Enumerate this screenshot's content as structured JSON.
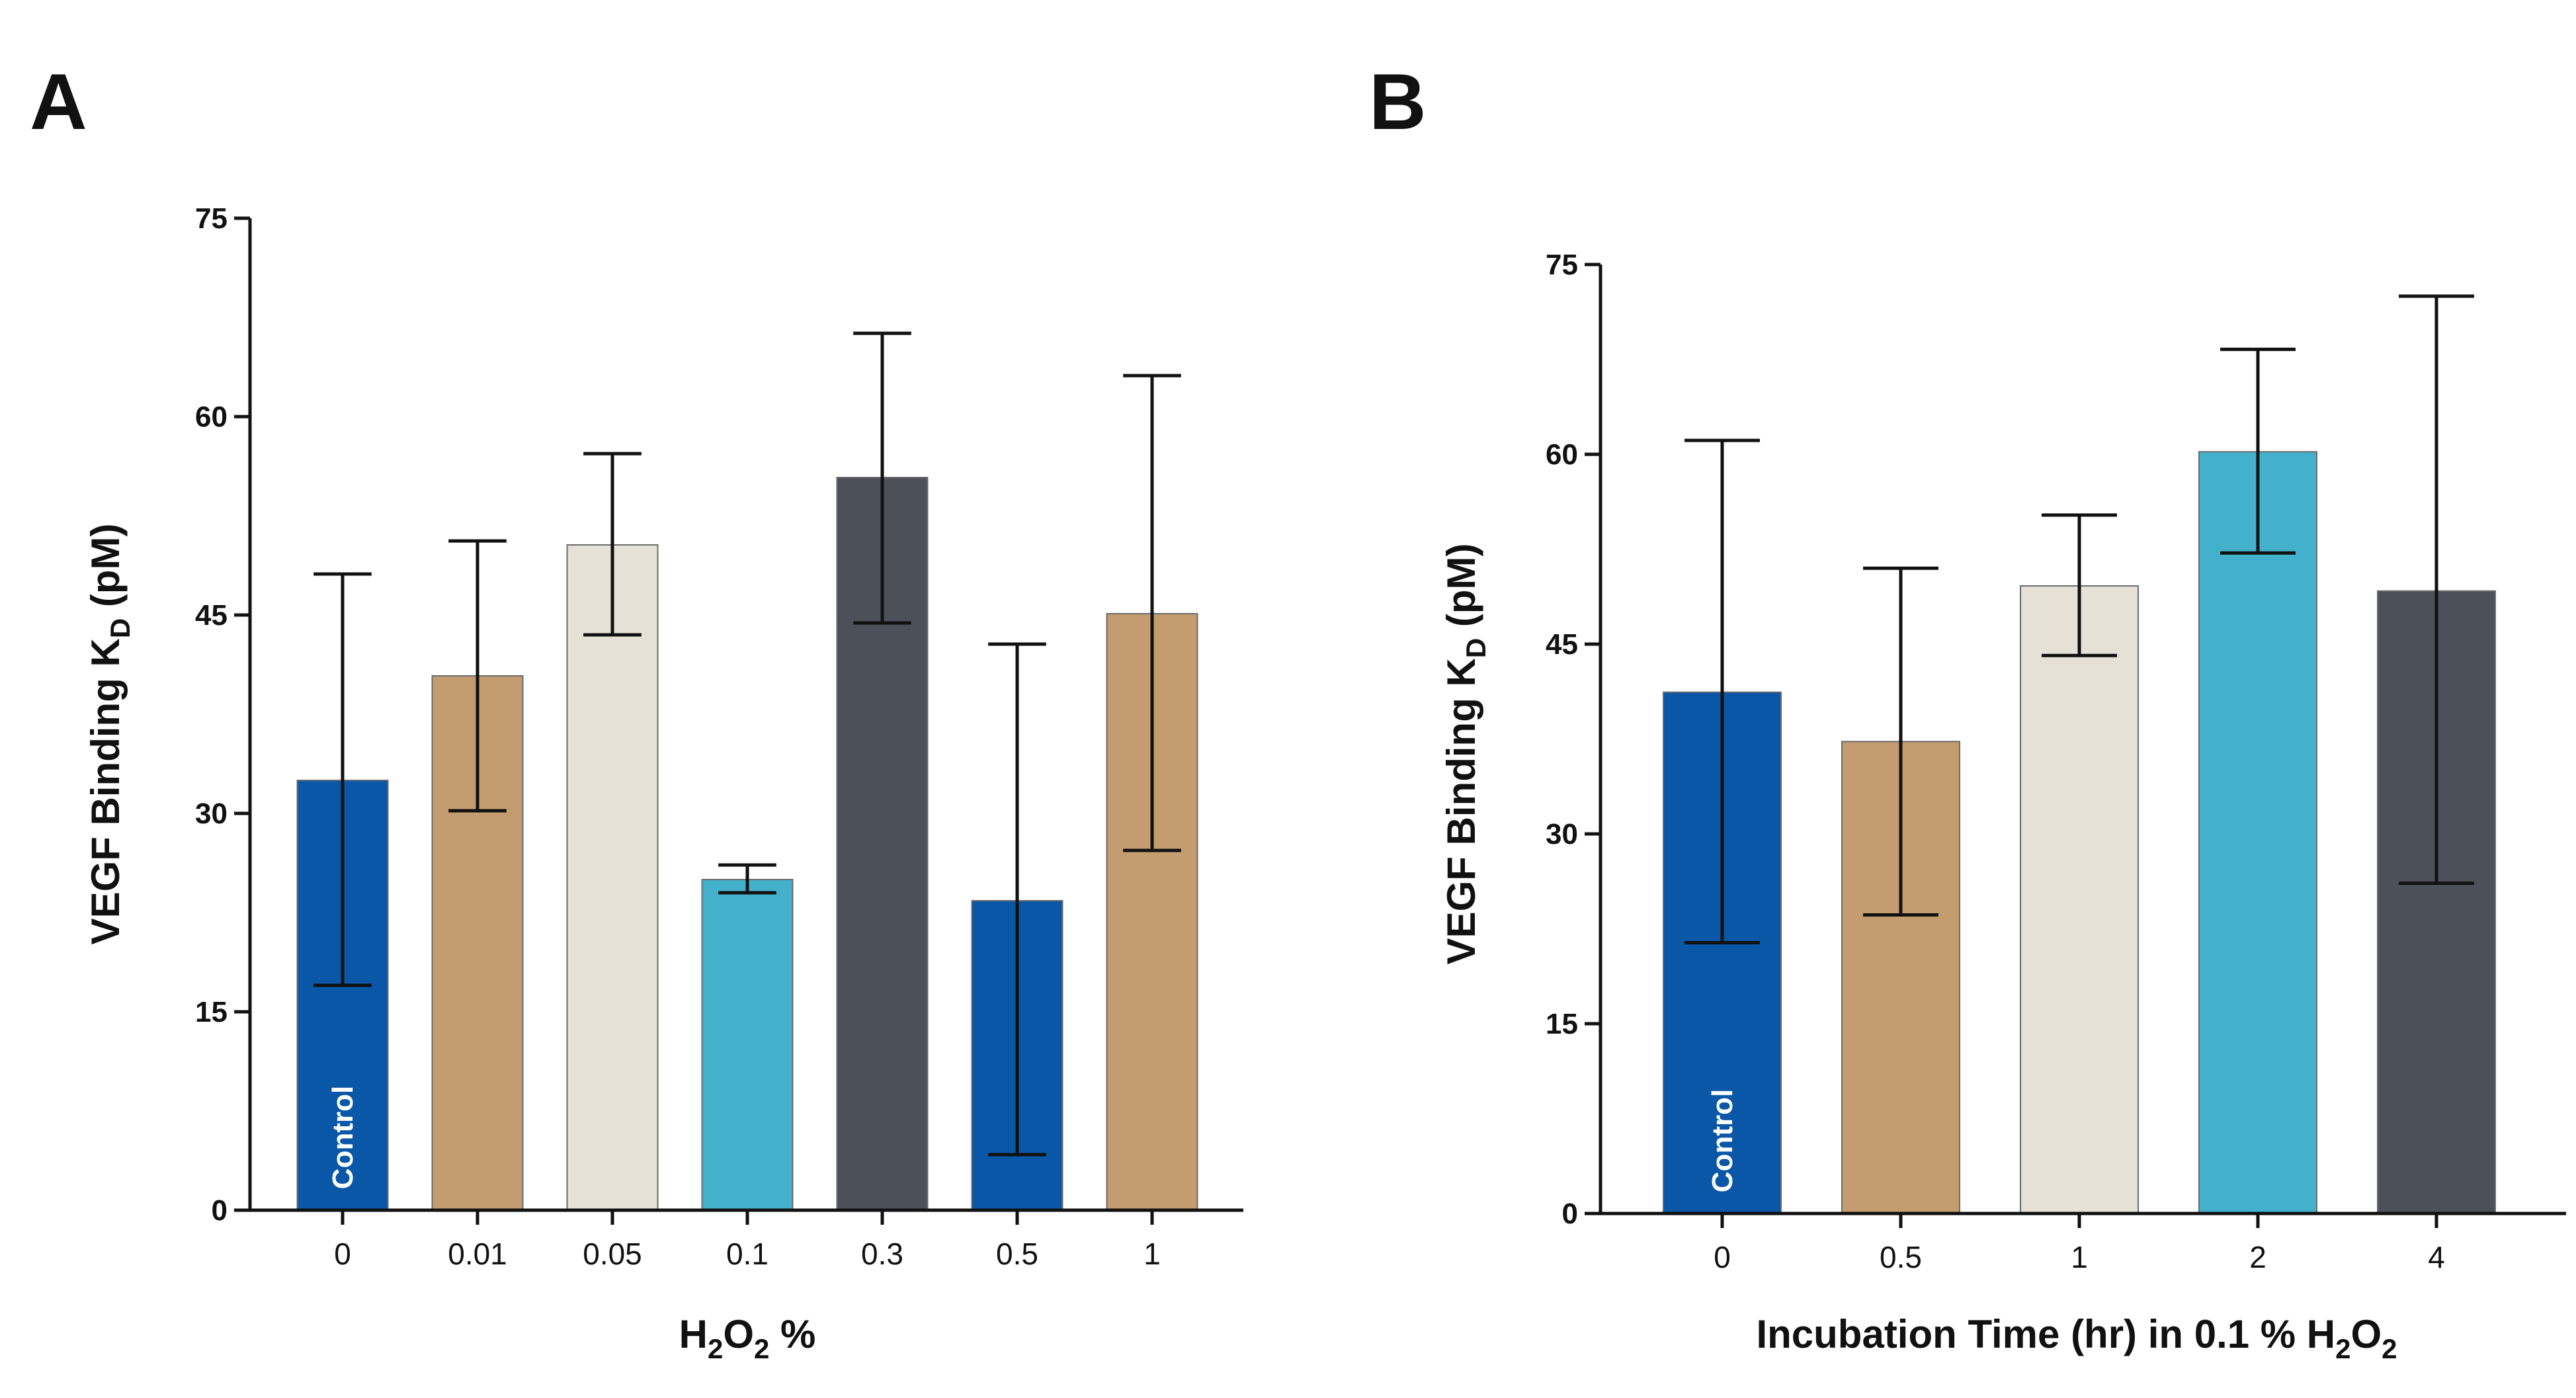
{
  "colors": {
    "blue": "#0a57a8",
    "tan": "#c39d6f",
    "beige": "#e6e1d6",
    "cyan": "#44b1cc",
    "gray": "#4c5159",
    "axis": "#111111",
    "bar_label_text": "#ffffff"
  },
  "chart_data": [
    {
      "panel": "A",
      "type": "bar",
      "xlabel": {
        "main": "H",
        "sub1": "2",
        "mid": "O",
        "sub2": "2",
        "tail": " %"
      },
      "ylabel": {
        "main": "VEGF Binding K",
        "sub": "D",
        "tail": " (pM)"
      },
      "ylim": [
        0,
        75
      ],
      "yticks": [
        0,
        15,
        30,
        45,
        60,
        75
      ],
      "categories": [
        "0",
        "0.01",
        "0.05",
        "0.1",
        "0.3",
        "0.5",
        "1"
      ],
      "values": [
        32.5,
        40.4,
        50.3,
        25.0,
        55.4,
        23.4,
        45.1
      ],
      "error_low": [
        17.0,
        30.2,
        43.5,
        24.0,
        44.4,
        4.2,
        27.2
      ],
      "error_high": [
        48.1,
        50.6,
        57.2,
        26.1,
        66.3,
        42.8,
        63.1
      ],
      "bar_colors": [
        "#0a57a8",
        "#c39d6f",
        "#e6e1d6",
        "#44b1cc",
        "#4c5159",
        "#0a57a8",
        "#c39d6f"
      ],
      "bar_annotations": [
        {
          "index": 0,
          "text": "Control"
        }
      ],
      "grid": false
    },
    {
      "panel": "B",
      "type": "bar",
      "xlabel": {
        "main": "Incubation Time (hr) in 0.1 % H",
        "sub1": "2",
        "mid": "O",
        "sub2": "2",
        "tail": ""
      },
      "ylabel": {
        "main": "VEGF Binding K",
        "sub": "D",
        "tail": " (pM)"
      },
      "ylim": [
        0,
        75
      ],
      "yticks": [
        0,
        15,
        30,
        45,
        60,
        75
      ],
      "categories": [
        "0",
        "0.5",
        "1",
        "2",
        "4"
      ],
      "values": [
        41.2,
        37.3,
        49.6,
        60.2,
        49.2
      ],
      "error_low": [
        21.4,
        23.6,
        44.1,
        52.2,
        26.1
      ],
      "error_high": [
        61.1,
        51.0,
        55.2,
        68.3,
        72.5
      ],
      "bar_colors": [
        "#0a57a8",
        "#c39d6f",
        "#e6e1d6",
        "#44b1cc",
        "#4c5159"
      ],
      "bar_annotations": [
        {
          "index": 0,
          "text": "Control"
        }
      ],
      "grid": false
    }
  ]
}
